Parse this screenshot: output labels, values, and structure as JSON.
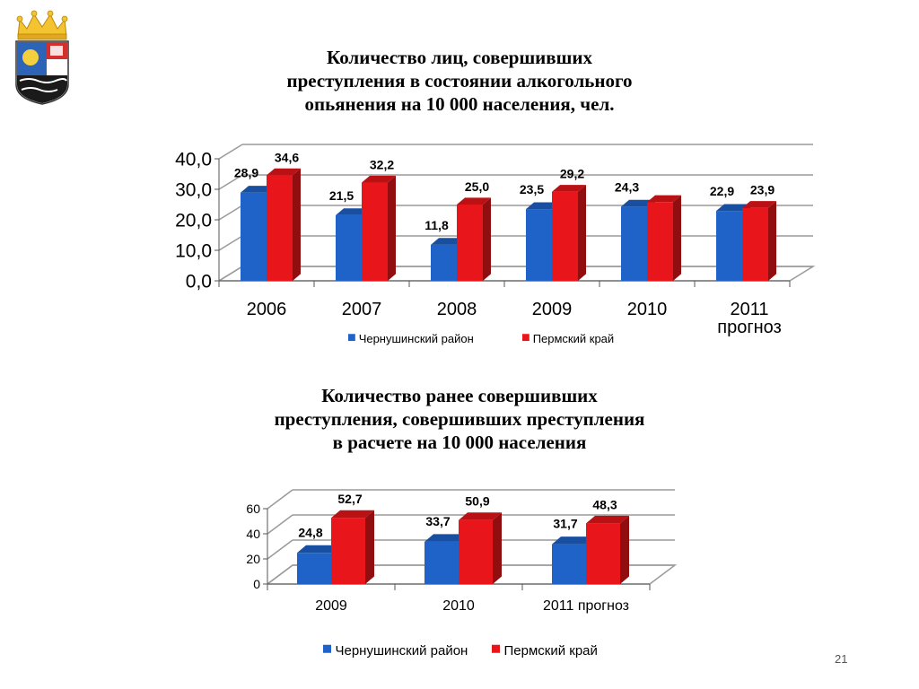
{
  "slide": {
    "title1": [
      "Количество лиц, совершивших",
      "преступления в состоянии алкогольного",
      "опьянения на 10 000 населения, чел."
    ],
    "title2": [
      "Количество ранее совершивших",
      "преступления, совершивших преступления",
      "в расчете на 10 000 населения"
    ],
    "page_number": "21",
    "colors": {
      "blue": "#1f63c8",
      "red": "#e8151a"
    }
  },
  "chart_data": [
    {
      "type": "bar",
      "categories": [
        "2006",
        "2007",
        "2008",
        "2009",
        "2010",
        "2011 прогноз"
      ],
      "series": [
        {
          "name": "Чернушинский район",
          "values": [
            28.9,
            21.5,
            11.8,
            23.5,
            24.3,
            22.9
          ],
          "labels": [
            "28,9",
            "21,5",
            "11,8",
            "23,5",
            "24,3",
            "22,9"
          ]
        },
        {
          "name": "Пермский край",
          "values": [
            34.6,
            32.2,
            25.0,
            29.2,
            25.8,
            23.9
          ],
          "labels": [
            "34,6",
            "32,2",
            "25,0",
            "29,2",
            "",
            "23,9"
          ]
        }
      ],
      "yticks": [
        "0,0",
        "10,0",
        "20,0",
        "30,0",
        "40,0"
      ],
      "ylim": [
        0,
        40
      ],
      "legend": "bottom"
    },
    {
      "type": "bar",
      "categories": [
        "2009",
        "2010",
        "2011 прогноз"
      ],
      "series": [
        {
          "name": "Чернушинский район",
          "values": [
            24.8,
            33.7,
            31.7
          ],
          "labels": [
            "24,8",
            "33,7",
            "31,7"
          ]
        },
        {
          "name": "Пермский край",
          "values": [
            52.7,
            50.9,
            48.3
          ],
          "labels": [
            "52,7",
            "50,9",
            "48,3"
          ]
        }
      ],
      "yticks": [
        "0",
        "20",
        "40",
        "60"
      ],
      "ylim": [
        0,
        60
      ],
      "legend": "bottom"
    }
  ]
}
